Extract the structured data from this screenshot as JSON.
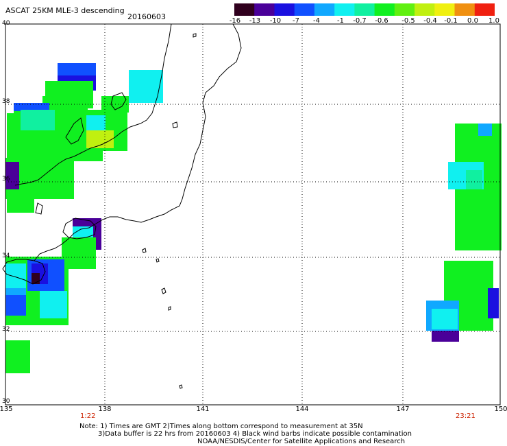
{
  "title": "ASCAT 25KM MLE-3 descending",
  "date": "20160603",
  "colorbar": {
    "labels": [
      "-16",
      "-13",
      "-10",
      "-7",
      "-4",
      "-1",
      "-0.7",
      "-0.6",
      "-0.5",
      "-0.4",
      "-0.1",
      "0.0",
      "1.0"
    ],
    "colors": [
      "#30001e",
      "#4a0099",
      "#1a10e0",
      "#1050ff",
      "#10a8ff",
      "#10f0f0",
      "#10f0a0",
      "#10f020",
      "#60f010",
      "#c0f010",
      "#f0f010",
      "#f09010",
      "#f02010"
    ]
  },
  "lat_labels": [
    "40",
    "38",
    "36",
    "34",
    "32",
    "30"
  ],
  "lon_labels": [
    "135",
    "138",
    "141",
    "144",
    "147",
    "150"
  ],
  "times": {
    "left": "1:22",
    "right": "23:21"
  },
  "notes": {
    "line1": "Note: 1) Times are GMT 2)Times along bottom correspond to measurement at 35N",
    "line2": "3)Data buffer is 22 hrs from 20160603 4) Black wind barbs indicate possible contamination",
    "line3": "NOAA/NESDIS/Center for Satellite Applications and Research"
  }
}
